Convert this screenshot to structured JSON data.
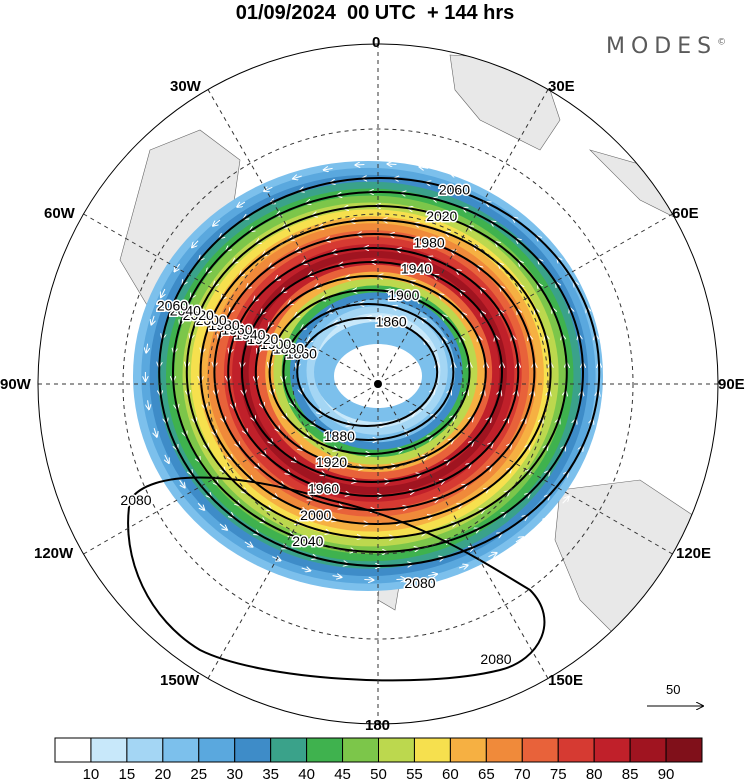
{
  "title": "01/09/2024  00 UTC  + 144 hrs",
  "brand": "MODES",
  "brand_mark": "©",
  "longitude_labels": {
    "n0": "0",
    "n30e": "30E",
    "n60e": "60E",
    "n90e": "90E",
    "n120e": "120E",
    "n150e": "150E",
    "n180": "180",
    "n150w": "150W",
    "n120w": "120W",
    "n90w": "90W",
    "n60w": "60W",
    "n30w": "30W"
  },
  "contours": [
    {
      "value": "1860",
      "ring": 1
    },
    {
      "value": "1880",
      "ring": 2
    },
    {
      "value": "1900",
      "ring": 3
    },
    {
      "value": "1920",
      "ring": 4
    },
    {
      "value": "1940",
      "ring": 5
    },
    {
      "value": "1960",
      "ring": 6
    },
    {
      "value": "1980",
      "ring": 7
    },
    {
      "value": "2000",
      "ring": 8
    },
    {
      "value": "2020",
      "ring": 9
    },
    {
      "value": "2040",
      "ring": 10
    },
    {
      "value": "2060",
      "ring": 11
    },
    {
      "value": "2080",
      "ring": 12
    }
  ],
  "vector_reference": {
    "label": "50"
  },
  "colorbar": {
    "ticks": [
      "10",
      "15",
      "20",
      "25",
      "30",
      "35",
      "40",
      "45",
      "50",
      "55",
      "60",
      "65",
      "70",
      "75",
      "80",
      "85",
      "90"
    ],
    "colors": [
      "#ffffff",
      "#c8e8fa",
      "#a4d6f4",
      "#7cc0ec",
      "#5aa8de",
      "#3e8cc8",
      "#3aa28a",
      "#3fb24e",
      "#7cc64a",
      "#bcd84e",
      "#f6e04e",
      "#f6b042",
      "#f08a3a",
      "#e8623a",
      "#d63a32",
      "#c0202a",
      "#a01420",
      "#80101a"
    ]
  }
}
